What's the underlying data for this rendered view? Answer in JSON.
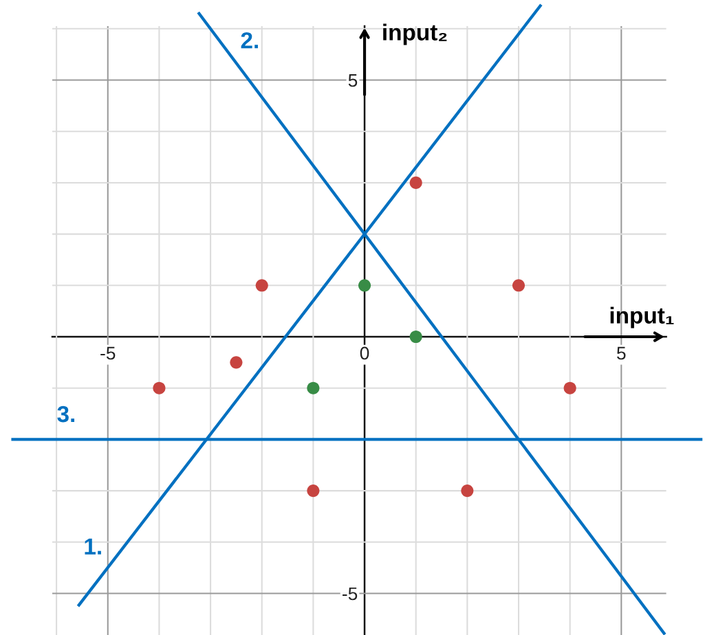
{
  "chart_data": {
    "type": "scatter",
    "xlabel": "input₁",
    "ylabel": "input₂",
    "xlim": [
      -7.1,
      6.63
    ],
    "ylim": [
      -5.81,
      6.56
    ],
    "xticks": [
      {
        "value": -6,
        "label": null
      },
      -5,
      {
        "value": -4,
        "label": null
      },
      {
        "value": -3,
        "label": null
      },
      {
        "value": -2,
        "label": null
      },
      {
        "value": -1,
        "label": null
      },
      0,
      {
        "value": 1,
        "label": null
      },
      {
        "value": 2,
        "label": null
      },
      {
        "value": 3,
        "label": null
      },
      {
        "value": 4,
        "label": null
      },
      5
    ],
    "yticks": [
      -5,
      {
        "value": -4,
        "label": null
      },
      {
        "value": -3,
        "label": null
      },
      {
        "value": -2,
        "label": null
      },
      {
        "value": -1,
        "label": null
      },
      {
        "value": 0,
        "label": null
      },
      {
        "value": 1,
        "label": null
      },
      {
        "value": 2,
        "label": null
      },
      {
        "value": 3,
        "label": null
      },
      {
        "value": 4,
        "label": null
      },
      5,
      {
        "value": 6,
        "label": null
      }
    ],
    "grid": true,
    "series": [
      {
        "color": "#c74440",
        "x": [
          1,
          -2,
          3,
          -2.5,
          -4,
          4,
          -1,
          2
        ],
        "values": [
          3,
          1,
          1,
          -0.5,
          -1,
          -1,
          -3,
          -3
        ]
      },
      {
        "color": "#388c46",
        "x": [
          0,
          1,
          -1
        ],
        "values": [
          1,
          0,
          -1
        ]
      },
      {
        "type": "line",
        "name": "1.",
        "color": "#0070c0",
        "x": [
          -5.58,
          3.44
        ],
        "values": [
          -5.25,
          6.47
        ]
      },
      {
        "type": "line",
        "name": "2.",
        "color": "#0070c0",
        "x": [
          -3.24,
          5.85
        ],
        "values": [
          6.32,
          -5.8
        ]
      },
      {
        "type": "line",
        "name": "3.",
        "color": "#0070c0",
        "x": [
          -6.88,
          6.58
        ],
        "values": [
          -2,
          -2
        ]
      }
    ]
  }
}
